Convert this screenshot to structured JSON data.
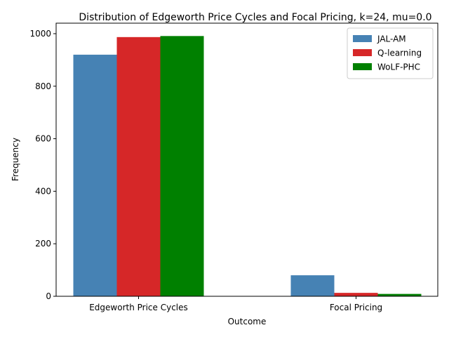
{
  "chart_data": {
    "type": "bar",
    "title": "Distribution of Edgeworth Price Cycles and Focal Pricing, k=24, mu=0.0",
    "xlabel": "Outcome",
    "ylabel": "Frequency",
    "categories": [
      "Edgeworth Price Cycles",
      "Focal Pricing"
    ],
    "ylim": [
      0,
      1040
    ],
    "yticks": [
      0,
      200,
      400,
      600,
      800,
      1000
    ],
    "grid": false,
    "legend_position": "top-right",
    "series": [
      {
        "name": "JAL-AM",
        "color": "#4682b4",
        "values": [
          920,
          80
        ]
      },
      {
        "name": "Q-learning",
        "color": "#d62728",
        "values": [
          987,
          13
        ]
      },
      {
        "name": "WoLF-PHC",
        "color": "#008000",
        "values": [
          991,
          9
        ]
      }
    ]
  }
}
